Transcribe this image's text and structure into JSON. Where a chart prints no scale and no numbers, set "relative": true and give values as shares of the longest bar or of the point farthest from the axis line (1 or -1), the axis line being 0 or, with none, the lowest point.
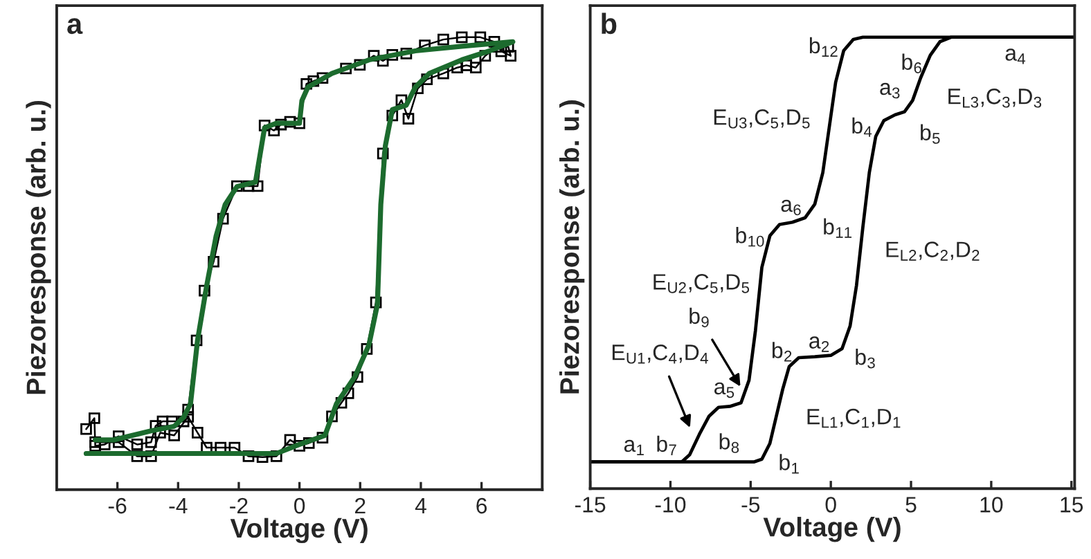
{
  "chart_data": [
    {
      "type": "line",
      "title": "a",
      "xlabel": "Voltage (V)",
      "ylabel": "Piezoresponse (arb. u.)",
      "relative": true,
      "xlim": [
        -8,
        8
      ],
      "xticks": [
        -6,
        -4,
        -2,
        0,
        2,
        4,
        6
      ],
      "tick_labels": "x",
      "grid": false,
      "legend": false,
      "series": [
        {
          "color": "#000000",
          "marker": "square",
          "x": [
            -6.73,
            -5.96,
            -5.35,
            -4.89,
            -4.59,
            -4.13,
            -3.67,
            -3.36,
            -3.06,
            -2.6,
            -2.14,
            -1.68,
            -1.22,
            -0.76,
            -0.31,
            0,
            0.31,
            0.76,
            1.07,
            1.38,
            1.61,
            1.91,
            2.22,
            2.52,
            2.75,
            3.06,
            3.36,
            3.59,
            3.9,
            4.2,
            4.74,
            5.2,
            5.5,
            5.81,
            6.12,
            6.5,
            6.88,
            6.96,
            6.65,
            6.42,
            5.96,
            5.35,
            4.74,
            4.13,
            3.52,
            3.06,
            2.75,
            2.45,
            1.99,
            1.53,
            0.76,
            0.46,
            0.23,
            0,
            -0.31,
            -0.61,
            -0.84,
            -1.15,
            -1.38,
            -1.68,
            -2.06,
            -2.52,
            -2.83,
            -3.13,
            -3.39,
            -3.67,
            -3.82,
            -4.2,
            -4.51,
            -4.74,
            -4.89,
            -5.35,
            -5.96,
            -6.42,
            -6.73,
            -6.76,
            -7.03
          ],
          "values": [
            0.105,
            0.105,
            0.074,
            0.074,
            0.126,
            0.12,
            0.161,
            0.126,
            0.093,
            0.093,
            0.093,
            0.074,
            0.072,
            0.074,
            0.11,
            0.097,
            0.103,
            0.115,
            0.162,
            0.192,
            0.213,
            0.249,
            0.311,
            0.414,
            0.743,
            0.827,
            0.861,
            0.82,
            0.887,
            0.907,
            0.92,
            0.933,
            0.938,
            0.933,
            0.959,
            0.979,
            0.979,
            0.959,
            0.969,
            0.99,
            1.0,
            1.0,
            0.995,
            0.982,
            0.964,
            0.961,
            0.948,
            0.959,
            0.939,
            0.931,
            0.91,
            0.903,
            0.897,
            0.81,
            0.813,
            0.807,
            0.794,
            0.805,
            0.671,
            0.671,
            0.671,
            0.599,
            0.504,
            0.44,
            0.33,
            0.177,
            0.151,
            0.151,
            0.151,
            0.141,
            0.105,
            0.1,
            0.118,
            0.1,
            0.097,
            0.158,
            0.134
          ]
        },
        {
          "color": "#1c6b2e",
          "marker": "none",
          "x": [
            -7.03,
            -3.82,
            -1.68,
            -0.76,
            0,
            0.84,
            1.22,
            1.83,
            2.29,
            2.57,
            2.68,
            2.83,
            3.06,
            3.52,
            3.82,
            4.28,
            5.35,
            6.27,
            7.03,
            5.35,
            3.82,
            2.29,
            1.07,
            0.28,
            0.08,
            0,
            -0.76,
            -1.15,
            -1.3,
            -1.45,
            -2.06,
            -2.45,
            -2.75,
            -3.06,
            -3.36,
            -3.59,
            -3.82,
            -4.13,
            -4.89,
            -6.12,
            -6.73
          ],
          "values": [
            0.08,
            0.08,
            0.08,
            0.08,
            0.1,
            0.12,
            0.19,
            0.25,
            0.32,
            0.41,
            0.63,
            0.76,
            0.84,
            0.85,
            0.89,
            0.92,
            0.95,
            0.97,
            0.99,
            0.98,
            0.97,
            0.95,
            0.92,
            0.89,
            0.86,
            0.81,
            0.81,
            0.8,
            0.74,
            0.68,
            0.67,
            0.63,
            0.56,
            0.45,
            0.33,
            0.19,
            0.16,
            0.14,
            0.13,
            0.11,
            0.11
          ]
        }
      ]
    },
    {
      "type": "line",
      "title": "b",
      "xlabel": "Voltage (V)",
      "ylabel": "Piezoresponse (arb. u.)",
      "relative": true,
      "xlim": [
        -15,
        15.2
      ],
      "xticks": [
        -15,
        -10,
        -5,
        0,
        5,
        10,
        15
      ],
      "tick_labels": "x",
      "grid": false,
      "legend": false,
      "series": [
        {
          "color": "#000000",
          "x": [
            -15,
            -4.8,
            -4.3,
            -3.8,
            -3.4,
            -3.0,
            -2.6,
            -2.0,
            -1.0,
            0,
            0.7,
            1.2,
            1.6,
            2.0,
            2.4,
            2.8,
            3.3,
            4.0,
            4.6,
            5.1,
            5.6,
            6.2,
            6.8,
            7.5,
            15.2
          ],
          "values": [
            0.059,
            0.059,
            0.065,
            0.1,
            0.16,
            0.22,
            0.27,
            0.29,
            0.292,
            0.295,
            0.31,
            0.36,
            0.45,
            0.58,
            0.7,
            0.78,
            0.815,
            0.828,
            0.835,
            0.86,
            0.91,
            0.96,
            0.99,
            1.0,
            1.0
          ]
        },
        {
          "color": "#000000",
          "x": [
            -15,
            -9.3,
            -8.8,
            -8.2,
            -7.6,
            -7.0,
            -6.3,
            -5.6,
            -5.1,
            -4.7,
            -4.3,
            -3.8,
            -3.2,
            -2.4,
            -1.6,
            -1.0,
            -0.5,
            -0.1,
            0.3,
            0.8,
            1.4,
            2.0,
            15.2
          ],
          "values": [
            0.059,
            0.059,
            0.075,
            0.12,
            0.16,
            0.18,
            0.182,
            0.19,
            0.24,
            0.35,
            0.49,
            0.56,
            0.585,
            0.59,
            0.6,
            0.63,
            0.7,
            0.8,
            0.9,
            0.97,
            0.995,
            1.0,
            1.0
          ]
        }
      ],
      "annotations": [
        "b$_{12}$",
        "b$_{6}$",
        "a$_{4}$",
        "a$_{3}$",
        "E$_{L3}$,C$_{3}$,D$_{3}$",
        "b$_{4}$",
        "b$_{5}$",
        "E$_{U3}$,C$_{5}$,D$_{5}$",
        "a$_{6}$",
        "b$_{10}$",
        "b$_{11}$",
        "E$_{L2}$,C$_{2}$,D$_{2}$",
        "E$_{U2}$,C$_{5}$,D$_{5}$",
        "b$_{9}$",
        "b$_{2}$",
        "a$_{2}$",
        "b$_{3}$",
        "E$_{U1}$,C$_{4}$,D$_{4}$",
        "a$_{5}$",
        "E$_{L1}$,C$_{1}$,D$_{1}$",
        "a$_{1}$",
        "b$_{7}$",
        "b$_{8}$",
        "b$_{1}$"
      ]
    }
  ]
}
